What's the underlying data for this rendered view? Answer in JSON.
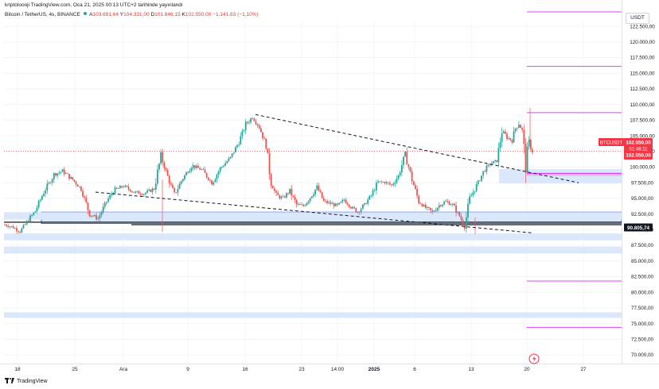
{
  "header": {
    "published": "kriptoloooji TradingView.com, Oca 21, 2025 00:13 UTC+2 tarihinde yayınlandı",
    "symbol": "Bitcoin / TetherUS, 4s, BINANCE",
    "open_label": "A",
    "open": "103.691,64",
    "high_label": "Y",
    "high": "104.331,00",
    "low_label": "D",
    "low": "101.846,15",
    "close_label": "K",
    "close": "102.550,00",
    "change": "−1.141,63 (−1,10%)"
  },
  "price_axis": {
    "currency": "USDT",
    "ticks": [
      "122.500,00",
      "120.000,00",
      "117.500,00",
      "115.000,00",
      "112.500,00",
      "110.000,00",
      "107.500,00",
      "105.000,00",
      "102.500,00",
      "100.000,00",
      "97.500,00",
      "95.000,00",
      "92.500,00",
      "90.000,00",
      "87.500,00",
      "85.000,00",
      "82.500,00",
      "80.000,00",
      "77.500,00",
      "75.000,00",
      "72.500,00",
      "70.000,00"
    ]
  },
  "time_axis": {
    "ticks": [
      "18",
      "25",
      "Ara",
      "9",
      "16",
      "23",
      "14:00",
      "2025",
      "6",
      "13",
      "20",
      "27"
    ]
  },
  "labels": {
    "symbol_tag": "BTCUSDT",
    "last_price": "102.550,00",
    "countdown": "01:46:11",
    "last_price_repeat": "102.550,00",
    "level": "90.805,74"
  },
  "footer": {
    "brand": "TradingView"
  },
  "colors": {
    "up": "#26a69a",
    "down": "#ef5350",
    "zone": "#dbe8fb",
    "zone_border": "#2962ff",
    "pink": "#e040fb",
    "last": "#f23645"
  },
  "chart_data": {
    "type": "candlestick",
    "ylim": [
      69000,
      125000
    ],
    "y_ticks": [
      122500,
      120000,
      117500,
      115000,
      112500,
      110000,
      107500,
      105000,
      102500,
      100000,
      97500,
      95000,
      92500,
      90000,
      87500,
      85000,
      82500,
      80000,
      77500,
      75000,
      72500,
      70000
    ],
    "x_ticks": [
      "18",
      "25",
      "Ara",
      "9",
      "16",
      "23",
      "14:00",
      "2025",
      "6",
      "13",
      "20",
      "27"
    ],
    "anchors": [
      [
        0,
        90800
      ],
      [
        5,
        90400
      ],
      [
        9,
        89700
      ],
      [
        13,
        91200
      ],
      [
        18,
        93000
      ],
      [
        23,
        96000
      ],
      [
        29,
        98800
      ],
      [
        34,
        99400
      ],
      [
        40,
        98000
      ],
      [
        45,
        96500
      ],
      [
        50,
        92500
      ],
      [
        55,
        91800
      ],
      [
        60,
        94500
      ],
      [
        64,
        96200
      ],
      [
        70,
        97000
      ],
      [
        76,
        96000
      ],
      [
        82,
        95800
      ],
      [
        88,
        96500
      ],
      [
        92,
        101800
      ],
      [
        96,
        98500
      ],
      [
        100,
        95500
      ],
      [
        104,
        97800
      ],
      [
        110,
        100300
      ],
      [
        116,
        99600
      ],
      [
        122,
        97500
      ],
      [
        127,
        99800
      ],
      [
        133,
        101500
      ],
      [
        138,
        104000
      ],
      [
        142,
        106800
      ],
      [
        146,
        108000
      ],
      [
        150,
        106400
      ],
      [
        154,
        103500
      ],
      [
        157,
        97500
      ],
      [
        160,
        95500
      ],
      [
        164,
        95000
      ],
      [
        168,
        96200
      ],
      [
        172,
        94000
      ],
      [
        176,
        93800
      ],
      [
        180,
        95200
      ],
      [
        184,
        96800
      ],
      [
        188,
        94500
      ],
      [
        192,
        94200
      ],
      [
        196,
        93800
      ],
      [
        200,
        94800
      ],
      [
        204,
        93600
      ],
      [
        208,
        92900
      ],
      [
        212,
        94000
      ],
      [
        216,
        95500
      ],
      [
        220,
        97600
      ],
      [
        224,
        97600
      ],
      [
        228,
        97100
      ],
      [
        232,
        98600
      ],
      [
        236,
        102100
      ],
      [
        240,
        98000
      ],
      [
        244,
        94500
      ],
      [
        248,
        93500
      ],
      [
        252,
        92800
      ],
      [
        256,
        93900
      ],
      [
        260,
        94500
      ],
      [
        264,
        94000
      ],
      [
        268,
        92200
      ],
      [
        271,
        90500
      ],
      [
        274,
        95000
      ],
      [
        278,
        97000
      ],
      [
        282,
        99200
      ],
      [
        286,
        100500
      ],
      [
        290,
        101000
      ],
      [
        293,
        105800
      ],
      [
        296,
        104800
      ],
      [
        299,
        104200
      ],
      [
        301,
        106200
      ],
      [
        303,
        107000
      ],
      [
        305,
        105800
      ],
      [
        307,
        100200
      ],
      [
        309,
        104000
      ],
      [
        311,
        102500
      ]
    ],
    "last_price": 102550,
    "zones": [
      {
        "from": 92800,
        "to": 91000,
        "color": "blue-outline"
      },
      {
        "from": 92800,
        "to": 91600,
        "color": "blue"
      },
      {
        "from": 89400,
        "to": 88300,
        "color": "blue"
      },
      {
        "from": 87300,
        "to": 86200,
        "color": "blue"
      },
      {
        "from": 76800,
        "to": 75900,
        "color": "blue"
      },
      {
        "from": 99700,
        "to": 97400,
        "color": "blue"
      },
      {
        "from": 99000,
        "to": 98600,
        "color": "pink"
      }
    ],
    "levels": [
      {
        "value": 124800,
        "color": "pink"
      },
      {
        "value": 116100,
        "color": "pink"
      },
      {
        "value": 108700,
        "color": "pink"
      },
      {
        "value": 81800,
        "color": "pink"
      },
      {
        "value": 74400,
        "color": "pink"
      },
      {
        "value": 91200,
        "color": "black"
      },
      {
        "value": 90805.74,
        "color": "black"
      }
    ],
    "trendlines": [
      {
        "from": [
          321,
          108400
        ],
        "to": [
          727,
          97500
        ],
        "style": "dashed"
      },
      {
        "from": [
          120,
          96000
        ],
        "to": [
          668,
          89500
        ],
        "style": "dashed"
      }
    ]
  }
}
